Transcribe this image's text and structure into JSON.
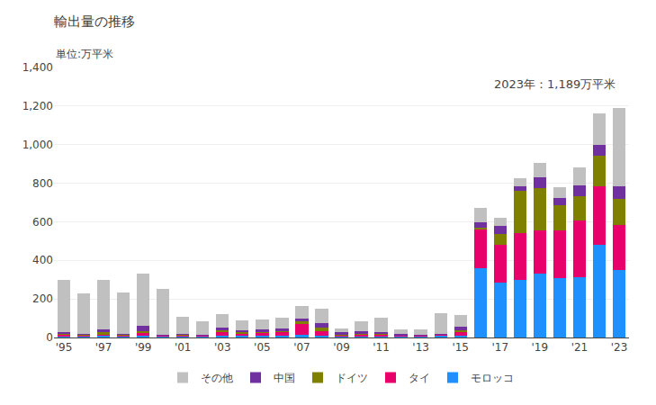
{
  "chart_data": {
    "type": "bar",
    "stacked": true,
    "title": "輸出量の推移",
    "subtitle": "単位:万平米",
    "annotation": "2023年：1,189万平米",
    "categories": [
      "'95",
      null,
      "'97",
      null,
      "'99",
      null,
      "'01",
      null,
      "'03",
      null,
      "'05",
      null,
      "'07",
      null,
      "'09",
      null,
      "'11",
      null,
      "'13",
      null,
      "'15",
      null,
      "'17",
      null,
      "'19",
      null,
      "'21",
      null,
      "'23"
    ],
    "series": [
      {
        "name": "モロッコ",
        "color": "#1e90ff",
        "values": [
          8,
          8,
          8,
          8,
          10,
          5,
          5,
          5,
          10,
          8,
          8,
          8,
          15,
          10,
          5,
          5,
          5,
          5,
          5,
          10,
          10,
          360,
          285,
          300,
          330,
          310,
          315,
          480,
          350
        ]
      },
      {
        "name": "タイ",
        "color": "#e8006b",
        "values": [
          8,
          5,
          10,
          5,
          15,
          5,
          5,
          5,
          20,
          15,
          18,
          20,
          55,
          25,
          8,
          12,
          12,
          5,
          5,
          5,
          18,
          200,
          195,
          240,
          225,
          245,
          290,
          305,
          235
        ]
      },
      {
        "name": "ドイツ",
        "color": "#808000",
        "values": [
          5,
          3,
          8,
          3,
          10,
          3,
          5,
          3,
          8,
          8,
          6,
          6,
          12,
          15,
          3,
          6,
          3,
          3,
          3,
          3,
          8,
          8,
          55,
          220,
          220,
          130,
          130,
          160,
          135
        ]
      },
      {
        "name": "中国",
        "color": "#7030a0",
        "values": [
          8,
          5,
          15,
          3,
          25,
          3,
          3,
          3,
          12,
          8,
          8,
          12,
          15,
          25,
          12,
          8,
          8,
          5,
          3,
          3,
          20,
          30,
          45,
          25,
          55,
          40,
          55,
          55,
          65
        ]
      },
      {
        "name": "その他",
        "color": "#c0c0c0",
        "values": [
          270,
          210,
          260,
          215,
          270,
          235,
          90,
          70,
          70,
          50,
          55,
          55,
          65,
          75,
          18,
          55,
          75,
          25,
          25,
          105,
          60,
          75,
          40,
          40,
          75,
          55,
          90,
          160,
          404
        ]
      }
    ],
    "ylim": [
      0,
      1400
    ],
    "yticks": [
      0,
      200,
      400,
      600,
      800,
      {
        "value": 1000,
        "label": "1,000"
      },
      {
        "value": 1200,
        "label": "1,200"
      },
      {
        "value": 1400,
        "label": "1,400"
      }
    ],
    "grid": true,
    "legend": "bottom"
  }
}
